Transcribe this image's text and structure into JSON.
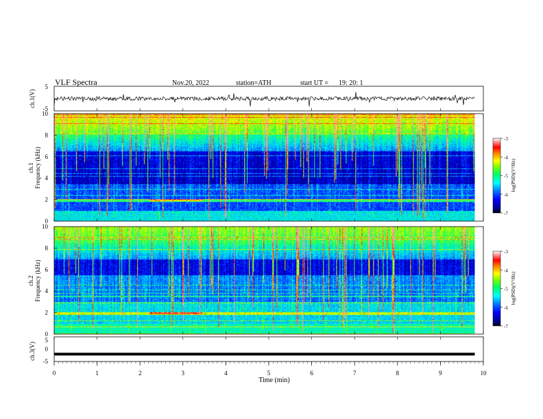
{
  "header": {
    "title": "VLF Spectra",
    "date": "Nov.20, 2022",
    "station": "station=ATH",
    "start_label": "start UT =",
    "start_value": "19: 20: 1"
  },
  "colorbar": {
    "label": "log(PSD)(V²/Hz)",
    "ticks": [
      "-3",
      "-4",
      "-5",
      "-6",
      "-7"
    ],
    "colors": [
      "#000080",
      "#0000ff",
      "#0080ff",
      "#00ffff",
      "#00ff80",
      "#80ff00",
      "#ffff00",
      "#ff8000",
      "#ff0000",
      "#ff8080",
      "#ffffff"
    ]
  },
  "chart_data": [
    {
      "type": "line",
      "name": "ch1-waveform",
      "ylabel": "ch.1(V)",
      "ylim": [
        -5,
        5
      ],
      "yticks": [
        "5",
        "-5"
      ],
      "xlim": [
        0,
        10
      ],
      "baseline": 0,
      "note": "noisy waveform around 0 V with sferic spikes"
    },
    {
      "type": "heatmap",
      "name": "ch1-spectrogram",
      "ylabel_top": "ch.1",
      "ylabel": "Frequency (kHz)",
      "ylim": [
        0,
        10
      ],
      "yticks": [
        "0",
        "2",
        "4",
        "6",
        "8",
        "10"
      ],
      "xlim": [
        0,
        9.8
      ],
      "z_range": [
        -7,
        -3
      ]
    },
    {
      "type": "heatmap",
      "name": "ch2-spectrogram",
      "ylabel_top": "ch.2",
      "ylabel": "Frequency (kHz)",
      "ylim": [
        0,
        10
      ],
      "yticks": [
        "0",
        "2",
        "4",
        "6",
        "8",
        "10"
      ],
      "xlim": [
        0,
        9.8
      ],
      "z_range": [
        -7,
        -3
      ]
    },
    {
      "type": "line",
      "name": "ch3-waveform",
      "ylabel": "ch.3(V)",
      "ylim": [
        -5,
        5
      ],
      "yticks": [
        "5",
        "0",
        "-5"
      ],
      "xlim": [
        0,
        9.8
      ],
      "baseline": -2
    }
  ],
  "xaxis": {
    "label": "Time (min)",
    "ticks": [
      "0",
      "1",
      "2",
      "3",
      "4",
      "5",
      "6",
      "7",
      "8",
      "9",
      "10"
    ],
    "range": [
      0,
      10
    ]
  }
}
